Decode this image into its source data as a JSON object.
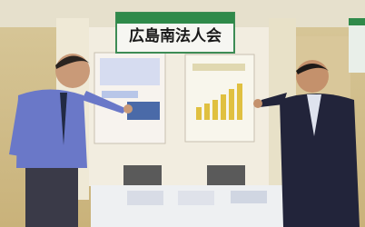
{
  "sign": {
    "text": "広島南法人会"
  }
}
